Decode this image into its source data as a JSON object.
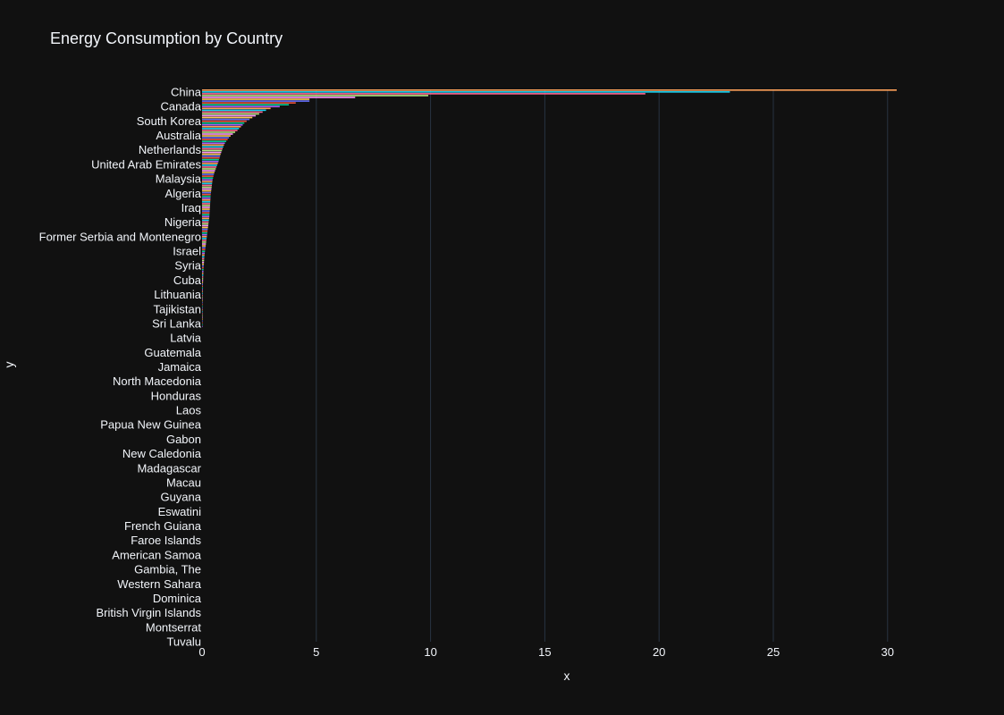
{
  "chart_data": {
    "type": "bar",
    "orientation": "horizontal",
    "title": "Energy Consumption by Country",
    "xlabel": "x",
    "ylabel": "y",
    "xlim": [
      0,
      30.4
    ],
    "x_ticks": [
      0,
      5,
      10,
      15,
      20,
      25,
      30
    ],
    "grid": true,
    "legend": "none",
    "colors": [
      "#636efa",
      "#EF553B",
      "#00cc96",
      "#ab63fa",
      "#FFA15A",
      "#19d3f3",
      "#FF6692",
      "#B6E880",
      "#FF97FF",
      "#FECB52"
    ],
    "categories": [
      "China",
      "Canada",
      "South Korea",
      "Australia",
      "Netherlands",
      "United Arab Emirates",
      "Malaysia",
      "Algeria",
      "Iraq",
      "Nigeria",
      "Former Serbia and Montenegro",
      "Israel",
      "Syria",
      "Cuba",
      "Lithuania",
      "Tajikistan",
      "Sri Lanka",
      "Latvia",
      "Guatemala",
      "Jamaica",
      "North Macedonia",
      "Honduras",
      "Laos",
      "Papua New Guinea",
      "Gabon",
      "New Caledonia",
      "Madagascar",
      "Macau",
      "Guyana",
      "Eswatini",
      "French Guiana",
      "Faroe Islands",
      "American Samoa",
      "Gambia, The",
      "Western Sahara",
      "Dominica",
      "British Virgin Islands",
      "Montserrat",
      "Tuvalu"
    ],
    "values": [
      30.4,
      4.7,
      2.9,
      1.9,
      1.25,
      0.95,
      0.8,
      0.65,
      0.45,
      0.38,
      0.34,
      0.3,
      0.25,
      0.2,
      0.1,
      0.07,
      0.06,
      0.05,
      0.04,
      0.03,
      0.03,
      0.025,
      0.02,
      0.02,
      0.015,
      0.012,
      0.01,
      0.01,
      0.008,
      0.007,
      0.006,
      0.005,
      0.004,
      0.004,
      0.003,
      0.003,
      0.002,
      0.002,
      0.001
    ],
    "unlabeled_values": [
      30.4,
      23.1,
      19.4,
      9.9,
      6.7,
      4.7,
      4.7,
      4.1,
      3.8,
      3.4,
      3.0,
      2.8,
      2.65,
      2.5,
      2.35,
      2.2,
      2.08,
      1.95,
      1.85,
      1.78,
      1.7,
      1.62,
      1.55,
      1.45,
      1.35,
      1.25,
      1.18,
      1.12,
      1.06,
      1.0,
      0.96,
      0.93,
      0.9,
      0.87,
      0.84,
      0.81,
      0.79,
      0.77,
      0.74,
      0.72,
      0.69,
      0.66,
      0.63,
      0.6,
      0.57,
      0.54,
      0.52,
      0.5,
      0.48,
      0.46,
      0.45,
      0.44,
      0.43,
      0.42,
      0.41,
      0.4,
      0.39,
      0.38,
      0.375,
      0.37,
      0.365,
      0.36,
      0.355,
      0.35,
      0.345,
      0.34,
      0.335,
      0.33,
      0.325,
      0.32,
      0.31,
      0.3,
      0.29,
      0.28,
      0.27,
      0.26,
      0.25,
      0.24,
      0.23,
      0.22,
      0.21,
      0.2,
      0.19,
      0.18,
      0.17,
      0.16,
      0.15,
      0.14,
      0.13,
      0.12,
      0.11,
      0.1,
      0.095,
      0.09,
      0.085,
      0.08,
      0.075,
      0.07,
      0.066,
      0.062,
      0.058,
      0.055,
      0.052,
      0.049,
      0.046,
      0.043,
      0.04,
      0.038,
      0.036,
      0.034,
      0.032,
      0.03,
      0.028,
      0.026,
      0.025,
      0.024,
      0.023,
      0.022,
      0.021,
      0.02,
      0.019,
      0.018,
      0.017,
      0.016,
      0.015,
      0.014,
      0.013,
      0.012,
      0.011,
      0.01
    ]
  }
}
